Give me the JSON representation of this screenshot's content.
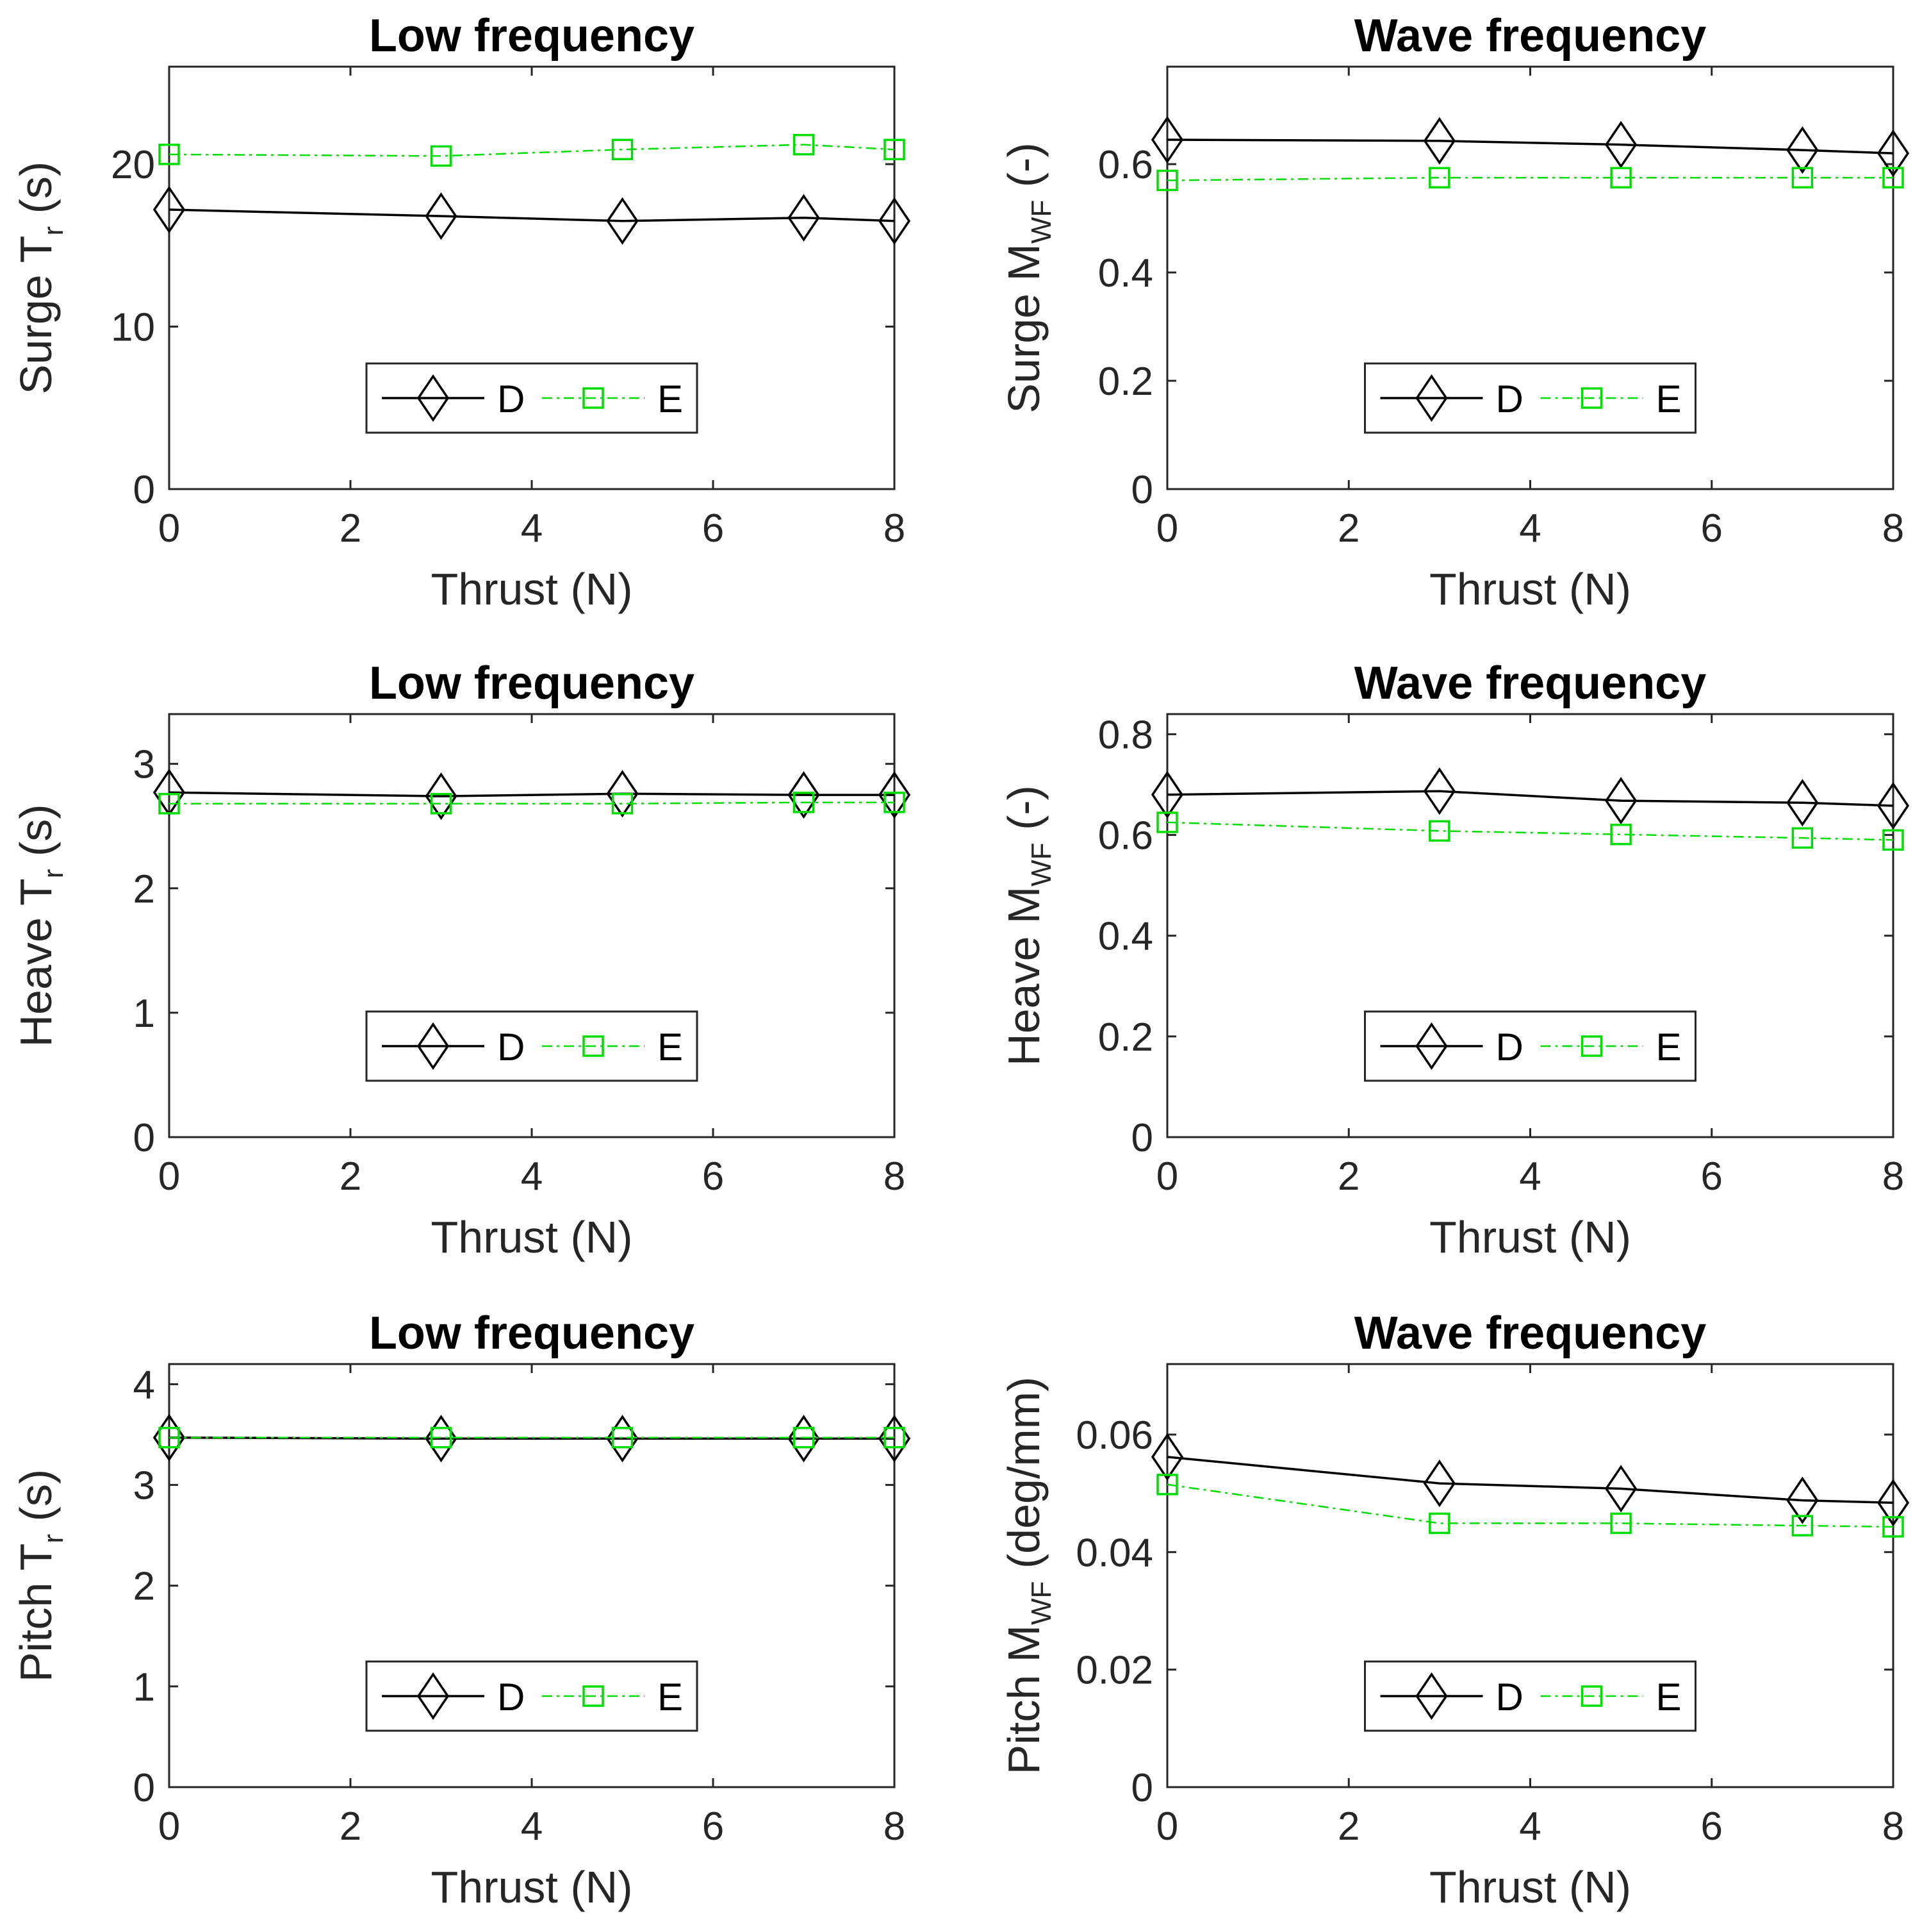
{
  "chart_data": [
    {
      "type": "line",
      "title": "Low frequency",
      "xlabel": "Thrust (N)",
      "ylabel": {
        "main": "Surge T",
        "sub": "r",
        "suffix": " (s)"
      },
      "xlim": [
        0,
        8
      ],
      "ylim": [
        0,
        26
      ],
      "xticks": [
        0,
        2,
        4,
        6,
        8
      ],
      "yticks": [
        0,
        10,
        20
      ],
      "x": [
        0,
        3,
        5,
        7,
        8
      ],
      "series": [
        {
          "name": "D",
          "color": "#000000",
          "marker": "diamond",
          "line": "solid",
          "values": [
            17.2,
            16.8,
            16.5,
            16.7,
            16.5
          ]
        },
        {
          "name": "E",
          "color": "#00dd00",
          "marker": "square",
          "line": "dashdot",
          "values": [
            20.6,
            20.5,
            20.9,
            21.2,
            20.9
          ]
        }
      ],
      "legend": "bottom-center"
    },
    {
      "type": "line",
      "title": "Wave frequency",
      "xlabel": "Thrust (N)",
      "ylabel": {
        "main": "Surge M",
        "sub": "WF",
        "suffix": " (-)"
      },
      "xlim": [
        0,
        8
      ],
      "ylim": [
        0,
        0.78
      ],
      "xticks": [
        0,
        2,
        4,
        6,
        8
      ],
      "yticks": [
        0,
        0.2,
        0.4,
        0.6
      ],
      "x": [
        0,
        3,
        5,
        7,
        8
      ],
      "series": [
        {
          "name": "D",
          "color": "#000000",
          "marker": "diamond",
          "line": "solid",
          "values": [
            0.645,
            0.643,
            0.636,
            0.626,
            0.62
          ]
        },
        {
          "name": "E",
          "color": "#00dd00",
          "marker": "square",
          "line": "dashdot",
          "values": [
            0.57,
            0.575,
            0.575,
            0.575,
            0.575
          ]
        }
      ],
      "legend": "bottom-center"
    },
    {
      "type": "line",
      "title": "Low frequency",
      "xlabel": "Thrust (N)",
      "ylabel": {
        "main": "Heave T",
        "sub": "r",
        "suffix": " (s)"
      },
      "xlim": [
        0,
        8
      ],
      "ylim": [
        0,
        3.4
      ],
      "xticks": [
        0,
        2,
        4,
        6,
        8
      ],
      "yticks": [
        0,
        1,
        2,
        3
      ],
      "x": [
        0,
        3,
        5,
        7,
        8
      ],
      "series": [
        {
          "name": "D",
          "color": "#000000",
          "marker": "diamond",
          "line": "solid",
          "values": [
            2.77,
            2.74,
            2.76,
            2.75,
            2.75
          ]
        },
        {
          "name": "E",
          "color": "#00dd00",
          "marker": "square",
          "line": "dashdot",
          "values": [
            2.68,
            2.68,
            2.68,
            2.69,
            2.69
          ]
        }
      ],
      "legend": "bottom-center"
    },
    {
      "type": "line",
      "title": "Wave frequency",
      "xlabel": "Thrust (N)",
      "ylabel": {
        "main": "Heave M",
        "sub": "WF",
        "suffix": " (-)"
      },
      "xlim": [
        0,
        8
      ],
      "ylim": [
        0,
        0.84
      ],
      "xticks": [
        0,
        2,
        4,
        6,
        8
      ],
      "yticks": [
        0,
        0.2,
        0.4,
        0.6,
        0.8
      ],
      "x": [
        0,
        3,
        5,
        7,
        8
      ],
      "series": [
        {
          "name": "D",
          "color": "#000000",
          "marker": "diamond",
          "line": "solid",
          "values": [
            0.68,
            0.687,
            0.668,
            0.664,
            0.658
          ]
        },
        {
          "name": "E",
          "color": "#00dd00",
          "marker": "square",
          "line": "dashdot",
          "values": [
            0.625,
            0.608,
            0.601,
            0.594,
            0.59
          ]
        }
      ],
      "legend": "bottom-center"
    },
    {
      "type": "line",
      "title": "Low frequency",
      "xlabel": "Thrust (N)",
      "ylabel": {
        "main": "Pitch T",
        "sub": "r",
        "suffix": " (s)"
      },
      "xlim": [
        0,
        8
      ],
      "ylim": [
        0,
        4.2
      ],
      "xticks": [
        0,
        2,
        4,
        6,
        8
      ],
      "yticks": [
        0,
        1,
        2,
        3,
        4
      ],
      "x": [
        0,
        3,
        5,
        7,
        8
      ],
      "series": [
        {
          "name": "D",
          "color": "#000000",
          "marker": "diamond",
          "line": "solid",
          "values": [
            3.47,
            3.46,
            3.46,
            3.46,
            3.46
          ]
        },
        {
          "name": "E",
          "color": "#00dd00",
          "marker": "square",
          "line": "dashdot",
          "values": [
            3.47,
            3.47,
            3.47,
            3.47,
            3.47
          ]
        }
      ],
      "legend": "bottom-center"
    },
    {
      "type": "line",
      "title": "Wave frequency",
      "xlabel": "Thrust (N)",
      "ylabel": {
        "main": "Pitch M",
        "sub": "WF",
        "suffix": " (deg/mm)"
      },
      "xlim": [
        0,
        8
      ],
      "ylim": [
        0,
        0.072
      ],
      "xticks": [
        0,
        2,
        4,
        6,
        8
      ],
      "yticks": [
        0,
        0.02,
        0.04,
        0.06
      ],
      "x": [
        0,
        3,
        5,
        7,
        8
      ],
      "series": [
        {
          "name": "D",
          "color": "#000000",
          "marker": "diamond",
          "line": "solid",
          "values": [
            0.0562,
            0.0517,
            0.0508,
            0.0488,
            0.0484
          ]
        },
        {
          "name": "E",
          "color": "#00dd00",
          "marker": "square",
          "line": "dashdot",
          "values": [
            0.0515,
            0.0449,
            0.0449,
            0.0445,
            0.0443
          ]
        }
      ],
      "legend": "bottom-center"
    }
  ]
}
